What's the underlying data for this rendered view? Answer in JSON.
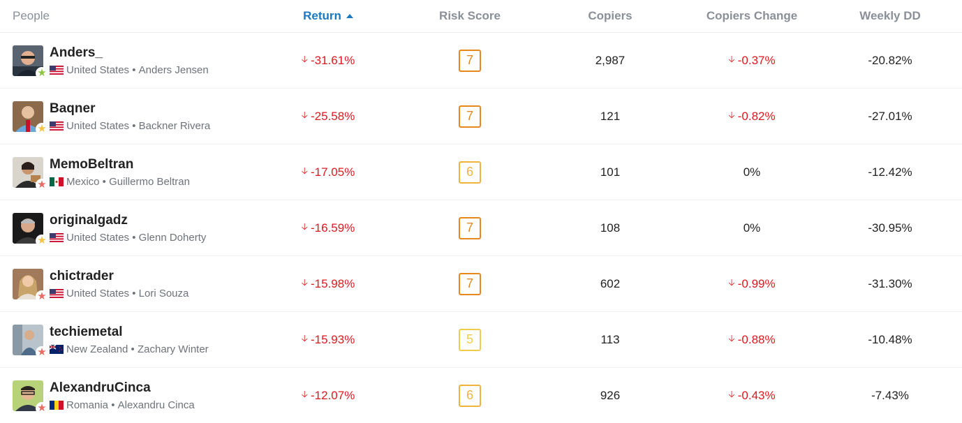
{
  "header": {
    "people": "People",
    "return": "Return",
    "risk": "Risk Score",
    "copiers": "Copiers",
    "change": "Copiers Change",
    "weekly_dd": "Weekly DD"
  },
  "colors": {
    "accent": "#1a79c1",
    "negative": "#e0181f",
    "risk7": "#e8871e",
    "risk6": "#f0b43c",
    "risk5": "#efcc4b"
  },
  "rows": [
    {
      "username": "Anders_",
      "country": "United States",
      "fullname": "Anders Jensen",
      "return": "-31.61%",
      "risk": "7",
      "copiers": "2,987",
      "change": "-0.37%",
      "weekly_dd": "-20.82%"
    },
    {
      "username": "Baqner",
      "country": "United States",
      "fullname": "Backner Rivera",
      "return": "-25.58%",
      "risk": "7",
      "copiers": "121",
      "change": "-0.82%",
      "weekly_dd": "-27.01%"
    },
    {
      "username": "MemoBeltran",
      "country": "Mexico",
      "fullname": "Guillermo Beltran",
      "return": "-17.05%",
      "risk": "6",
      "copiers": "101",
      "change": "0%",
      "weekly_dd": "-12.42%"
    },
    {
      "username": "originalgadz",
      "country": "United States",
      "fullname": "Glenn Doherty",
      "return": "-16.59%",
      "risk": "7",
      "copiers": "108",
      "change": "0%",
      "weekly_dd": "-30.95%"
    },
    {
      "username": "chictrader",
      "country": "United States",
      "fullname": "Lori Souza",
      "return": "-15.98%",
      "risk": "7",
      "copiers": "602",
      "change": "-0.99%",
      "weekly_dd": "-31.30%"
    },
    {
      "username": "techiemetal",
      "country": "New Zealand",
      "fullname": "Zachary Winter",
      "return": "-15.93%",
      "risk": "5",
      "copiers": "113",
      "change": "-0.88%",
      "weekly_dd": "-10.48%"
    },
    {
      "username": "AlexandruCinca",
      "country": "Romania",
      "fullname": "Alexandru Cinca",
      "return": "-12.07%",
      "risk": "6",
      "copiers": "926",
      "change": "-0.43%",
      "weekly_dd": "-7.43%"
    }
  ]
}
